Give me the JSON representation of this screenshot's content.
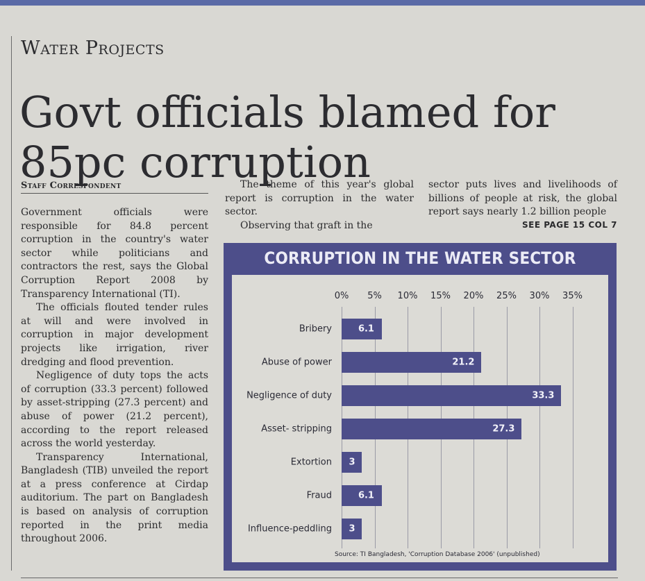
{
  "article": {
    "kicker": "Water Projects",
    "headline": "Govt officials blamed for 85pc corruption",
    "byline": "Staff Correspondent",
    "col1": [
      "Government officials were responsible for 84.8 percent corruption in the country's water sector while politicians and contractors the rest, says the Global Corruption Report 2008 by Transparency International (TI).",
      "The officials flouted tender rules at will and were involved in corruption in major development projects like irrigation, river dredging and flood prevention.",
      "Negligence of duty tops the acts of corruption (33.3 percent) followed by asset-stripping (27.3 percent) and abuse of power (21.2 percent), according to the report released across the world yesterday.",
      "Transparency International, Bangladesh (TIB) unveiled the report at a press conference at Cirdap auditorium. The part on Bangladesh is based on analysis of corruption reported in the print media throughout 2006."
    ],
    "col2": [
      "The theme of this year's global report is corruption in the water sector.",
      "Observing that graft in the"
    ],
    "col3": "sector puts lives and livelihoods of billions of people at risk, the global report says nearly 1.2 billion people",
    "continued": "SEE PAGE 15 COL 7"
  },
  "chart_data": {
    "type": "bar",
    "orientation": "horizontal",
    "title": "CORRUPTION IN THE WATER SECTOR",
    "categories": [
      "Bribery",
      "Abuse of power",
      "Negligence of duty",
      "Asset- stripping",
      "Extortion",
      "Fraud",
      "Influence-peddling"
    ],
    "values": [
      6.1,
      21.2,
      33.3,
      27.3,
      3,
      6.1,
      3
    ],
    "value_labels": [
      "6.1",
      "21.2",
      "33.3",
      "27.3",
      "3",
      "6.1",
      "3"
    ],
    "xlim": [
      0,
      35
    ],
    "x_ticks": [
      "0%",
      "5%",
      "10%",
      "15%",
      "20%",
      "25%",
      "30%",
      "35%"
    ],
    "tick_values": [
      0,
      5,
      10,
      15,
      20,
      25,
      30,
      35
    ],
    "grid": true,
    "source": "Source: TI Bangladesh, 'Corruption Database 2006' (unpublished)",
    "colors": {
      "bar": "#4d4e8a",
      "frame": "#4d4e8a",
      "panel": "#dcdbd6"
    }
  }
}
